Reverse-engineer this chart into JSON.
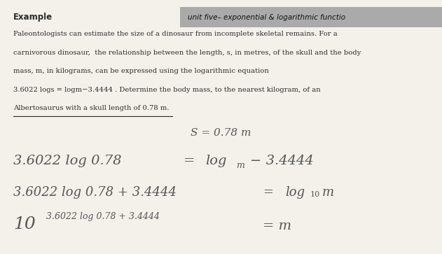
{
  "bg_color": "#c8b89a",
  "paper_color": "#f4f1eb",
  "text_color": "#2a2a2a",
  "gray_color": "#555555",
  "header_right": "unit five– exponential & logarithmic functio",
  "header_highlight": "#aaaaaa",
  "para_lines": [
    "Paleontologists can estimate the size of a dinosaur from incomplete skeletal remains. For a",
    "carnivorous dinosaur,  the relationship between the length, s, in metres, of the skull and the body",
    "mass, m, in kilograms, can be expressed using the logarithmic equation",
    "3.6022 logs = logm−3.4444 . Determine the body mass, to the nearest kilogram, of an",
    "Albertosaurus with a skull length of 0.78 m."
  ],
  "step0": "S = 0.78 m",
  "step1_left": "3.6022 log 0.78",
  "step1_log": "log",
  "step1_sub_m": "m",
  "step1_minus": "− 3.4444",
  "step2_left": "3.6022 log 0.78 + 3.4444",
  "step2_log": "log",
  "step2_sub_10": "10",
  "step2_m": "m",
  "step3_base": "10",
  "step3_exp": "3.6022 log 0.78 + 3.4444",
  "step3_eq_m": "= m"
}
